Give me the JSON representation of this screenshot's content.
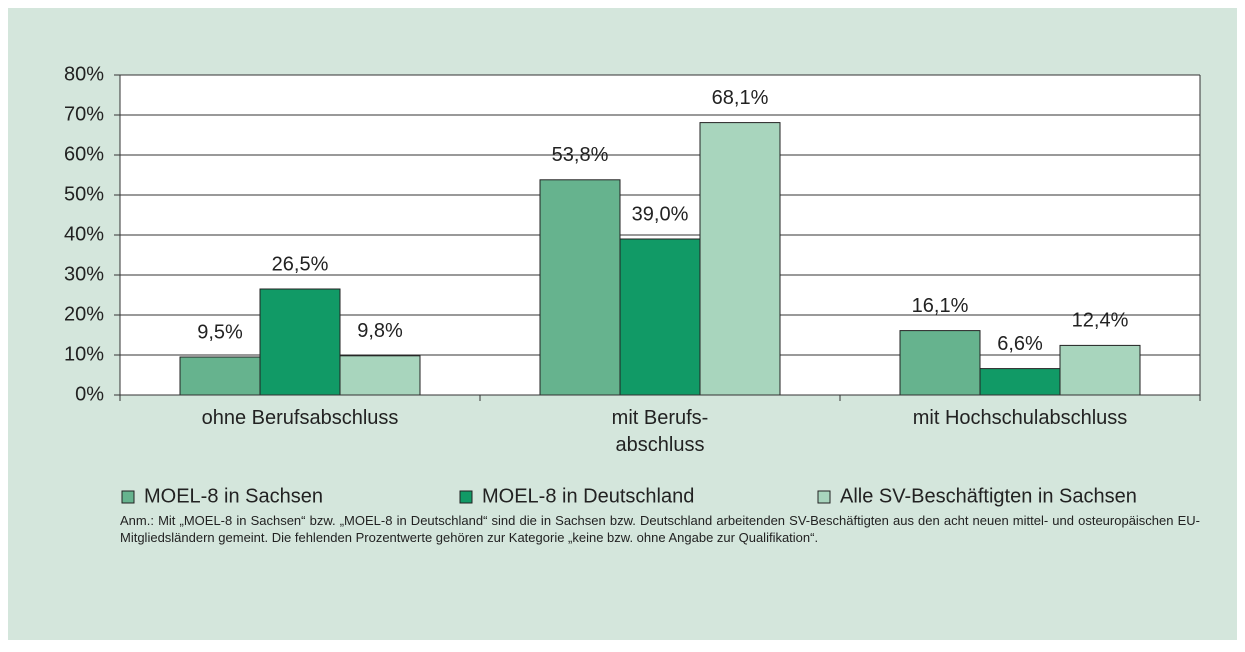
{
  "chart_data": {
    "type": "bar",
    "categories": [
      "ohne Berufsabschluss",
      "mit Berufs-\nabschluss",
      "mit Hochschulabschluss"
    ],
    "series": [
      {
        "name": "MOEL-8 in Sachsen",
        "color": "#66b38e",
        "values": [
          9.5,
          53.8,
          16.1
        ],
        "value_labels": [
          "9,5%",
          "53,8%",
          "16,1%"
        ]
      },
      {
        "name": "MOEL-8 in Deutschland",
        "color": "#119a66",
        "values": [
          26.5,
          39.0,
          6.6
        ],
        "value_labels": [
          "26,5%",
          "39,0%",
          "6,6%"
        ]
      },
      {
        "name": "Alle SV-Beschäftigten in Sachsen",
        "color": "#a8d5bd",
        "values": [
          9.8,
          68.1,
          12.4
        ],
        "value_labels": [
          "9,8%",
          "68,1%",
          "12,4%"
        ]
      }
    ],
    "ylim": [
      0,
      80
    ],
    "yticks": [
      {
        "value": 0,
        "label": "0%"
      },
      {
        "value": 10,
        "label": "10%"
      },
      {
        "value": 20,
        "label": "20%"
      },
      {
        "value": 30,
        "label": "30%"
      },
      {
        "value": 40,
        "label": "40%"
      },
      {
        "value": 50,
        "label": "50%"
      },
      {
        "value": 60,
        "label": "60%"
      },
      {
        "value": 70,
        "label": "70%"
      },
      {
        "value": 80,
        "label": "80%"
      }
    ],
    "grid": true,
    "legend": "bottom",
    "note": "Anm.: Mit „MOEL-8 in Sachsen“ bzw. „MOEL-8 in Deutschland“ sind die in Sachsen bzw. Deutschland arbeitenden SV-Beschäftigten aus den acht neuen mittel- und osteuropäischen EU-Mitgliedsländern gemeint.  Die fehlenden Prozentwerte gehören zur Kategorie „keine bzw. ohne Angabe zur Qualifikation“."
  }
}
